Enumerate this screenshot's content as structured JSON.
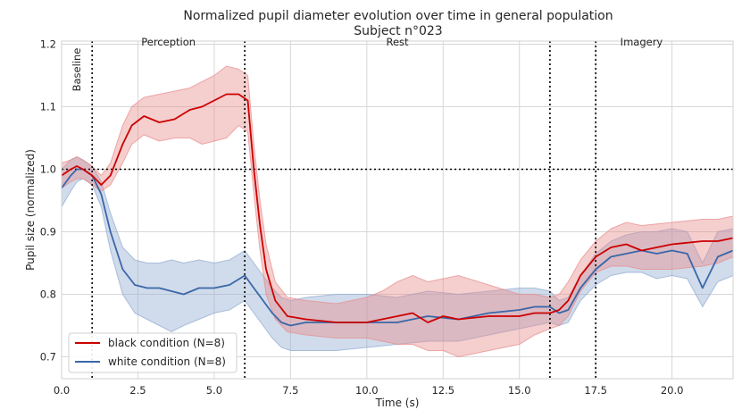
{
  "chart_data": {
    "type": "line",
    "title": "Normalized pupil diameter evolution over time in general population",
    "subtitle": "Subject n°023",
    "xlabel": "Time (s)",
    "ylabel": "Pupil size (normalized)",
    "xlim": [
      0,
      22
    ],
    "ylim": [
      0.665,
      1.205
    ],
    "xticks": [
      0.0,
      2.5,
      5.0,
      7.5,
      10.0,
      12.5,
      15.0,
      17.5,
      20.0
    ],
    "xtick_labels": [
      "0.0",
      "2.5",
      "5.0",
      "7.5",
      "10.0",
      "12.5",
      "15.0",
      "17.5",
      "20.0"
    ],
    "yticks": [
      0.7,
      0.8,
      0.9,
      1.0,
      1.1,
      1.2
    ],
    "ytick_labels": [
      "0.7",
      "0.8",
      "0.9",
      "1.0",
      "1.1",
      "1.2"
    ],
    "grid": true,
    "legend_position": "bottom-left",
    "reference_line": {
      "y": 1.0,
      "style": "dotted"
    },
    "phase_boundaries": [
      1.0,
      6.0,
      16.0,
      17.5
    ],
    "phases": [
      {
        "label": "Baseline",
        "x": 0.5,
        "rotated": true
      },
      {
        "label": "Perception",
        "x": 3.5
      },
      {
        "label": "Rest",
        "x": 11.0
      },
      {
        "label": "Imagery",
        "x": 19.0
      }
    ],
    "colors": {
      "black": "#cc0000",
      "white": "#3a67a8",
      "black_band": "#e88a8a",
      "white_band": "#8fa9d0"
    },
    "series": [
      {
        "name": "black condition (N=8)",
        "x": [
          0,
          0.3,
          0.5,
          0.7,
          1.0,
          1.3,
          1.6,
          2.0,
          2.3,
          2.7,
          3.2,
          3.7,
          4.2,
          4.6,
          5.0,
          5.4,
          5.8,
          6.1,
          6.3,
          6.5,
          6.7,
          7.0,
          7.4,
          8.0,
          9.0,
          10.0,
          10.5,
          11.0,
          11.5,
          12.0,
          12.5,
          13.0,
          14.0,
          15.0,
          15.5,
          16.0,
          16.3,
          16.6,
          17.0,
          17.5,
          18.0,
          18.5,
          19.0,
          20.0,
          21.0,
          21.5,
          22.0
        ],
        "values": [
          0.99,
          1.0,
          1.005,
          1.0,
          0.99,
          0.975,
          0.99,
          1.04,
          1.07,
          1.085,
          1.075,
          1.08,
          1.095,
          1.1,
          1.11,
          1.12,
          1.12,
          1.11,
          1.0,
          0.91,
          0.84,
          0.79,
          0.765,
          0.76,
          0.755,
          0.755,
          0.76,
          0.765,
          0.77,
          0.755,
          0.765,
          0.76,
          0.765,
          0.765,
          0.77,
          0.77,
          0.775,
          0.79,
          0.83,
          0.86,
          0.875,
          0.88,
          0.87,
          0.88,
          0.885,
          0.885,
          0.89
        ],
        "lower": [
          0.97,
          0.98,
          0.985,
          0.985,
          0.975,
          0.965,
          0.975,
          1.01,
          1.04,
          1.055,
          1.045,
          1.05,
          1.05,
          1.04,
          1.045,
          1.05,
          1.07,
          1.06,
          0.96,
          0.87,
          0.8,
          0.76,
          0.74,
          0.735,
          0.73,
          0.73,
          0.725,
          0.72,
          0.72,
          0.71,
          0.71,
          0.7,
          0.71,
          0.72,
          0.735,
          0.745,
          0.75,
          0.765,
          0.805,
          0.835,
          0.845,
          0.845,
          0.84,
          0.84,
          0.845,
          0.85,
          0.86
        ],
        "upper": [
          1.01,
          1.015,
          1.02,
          1.015,
          1.005,
          0.99,
          1.01,
          1.07,
          1.1,
          1.115,
          1.12,
          1.125,
          1.13,
          1.14,
          1.15,
          1.165,
          1.16,
          1.15,
          1.04,
          0.95,
          0.88,
          0.82,
          0.795,
          0.79,
          0.785,
          0.795,
          0.805,
          0.82,
          0.83,
          0.82,
          0.825,
          0.83,
          0.815,
          0.8,
          0.8,
          0.795,
          0.8,
          0.82,
          0.855,
          0.885,
          0.905,
          0.915,
          0.91,
          0.915,
          0.92,
          0.92,
          0.925
        ]
      },
      {
        "name": "white condition (N=8)",
        "x": [
          0,
          0.3,
          0.5,
          0.7,
          1.0,
          1.3,
          1.6,
          2.0,
          2.4,
          2.8,
          3.2,
          3.6,
          4.0,
          4.5,
          5.0,
          5.5,
          6.0,
          6.3,
          6.6,
          6.9,
          7.2,
          7.5,
          8.0,
          9.0,
          10.0,
          11.0,
          12.0,
          13.0,
          14.0,
          15.0,
          15.5,
          16.0,
          16.3,
          16.6,
          17.0,
          17.5,
          18.0,
          18.5,
          19.0,
          19.5,
          20.0,
          20.5,
          21.0,
          21.5,
          22.0
        ],
        "values": [
          0.97,
          0.99,
          1.0,
          1.0,
          0.99,
          0.96,
          0.9,
          0.84,
          0.815,
          0.81,
          0.81,
          0.805,
          0.8,
          0.81,
          0.81,
          0.815,
          0.83,
          0.81,
          0.79,
          0.77,
          0.755,
          0.75,
          0.755,
          0.755,
          0.755,
          0.755,
          0.765,
          0.76,
          0.77,
          0.775,
          0.78,
          0.78,
          0.77,
          0.775,
          0.81,
          0.84,
          0.86,
          0.865,
          0.87,
          0.865,
          0.87,
          0.865,
          0.81,
          0.86,
          0.87
        ],
        "lower": [
          0.94,
          0.965,
          0.98,
          0.985,
          0.975,
          0.94,
          0.87,
          0.8,
          0.77,
          0.76,
          0.75,
          0.74,
          0.75,
          0.76,
          0.77,
          0.775,
          0.79,
          0.77,
          0.75,
          0.73,
          0.715,
          0.71,
          0.71,
          0.71,
          0.715,
          0.72,
          0.725,
          0.725,
          0.735,
          0.745,
          0.75,
          0.755,
          0.75,
          0.755,
          0.79,
          0.815,
          0.83,
          0.835,
          0.835,
          0.825,
          0.83,
          0.825,
          0.78,
          0.82,
          0.83
        ],
        "upper": [
          1.0,
          1.015,
          1.02,
          1.015,
          1.005,
          0.98,
          0.93,
          0.875,
          0.855,
          0.85,
          0.85,
          0.855,
          0.85,
          0.855,
          0.85,
          0.855,
          0.87,
          0.85,
          0.83,
          0.81,
          0.795,
          0.79,
          0.795,
          0.8,
          0.8,
          0.795,
          0.805,
          0.8,
          0.805,
          0.81,
          0.81,
          0.805,
          0.79,
          0.795,
          0.83,
          0.865,
          0.885,
          0.895,
          0.9,
          0.9,
          0.905,
          0.9,
          0.85,
          0.9,
          0.905
        ]
      }
    ]
  }
}
